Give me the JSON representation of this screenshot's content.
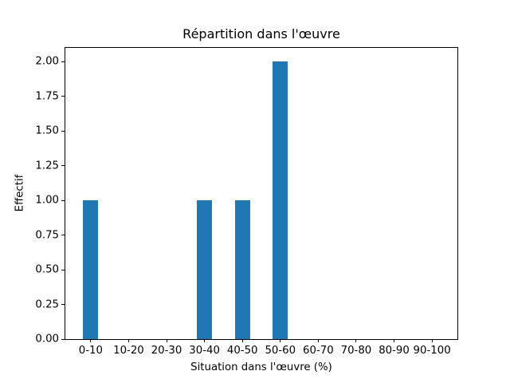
{
  "figure": {
    "title": "Répartition dans l'œuvre",
    "xlabel": "Situation dans l'œuvre (%)",
    "ylabel": "Effectif",
    "background_color": "#ffffff",
    "spine_color": "#000000"
  },
  "chart_data": {
    "type": "bar",
    "title": "Répartition dans l'œuvre",
    "xlabel": "Situation dans l'œuvre (%)",
    "ylabel": "Effectif",
    "categories": [
      "0-10",
      "10-20",
      "20-30",
      "30-40",
      "40-50",
      "50-60",
      "60-70",
      "70-80",
      "80-90",
      "90-100"
    ],
    "values": [
      1,
      0,
      0,
      1,
      1,
      2,
      0,
      0,
      0,
      0
    ],
    "ytick_values": [
      0.0,
      0.25,
      0.5,
      0.75,
      1.0,
      1.25,
      1.5,
      1.75,
      2.0
    ],
    "ytick_labels": [
      "0.00",
      "0.25",
      "0.50",
      "0.75",
      "1.00",
      "1.25",
      "1.50",
      "1.75",
      "2.00"
    ],
    "ylim": [
      0,
      2.1
    ],
    "bar_color": "#1f77b4",
    "bar_width_fraction": 0.4,
    "grid": false,
    "legend": null
  }
}
